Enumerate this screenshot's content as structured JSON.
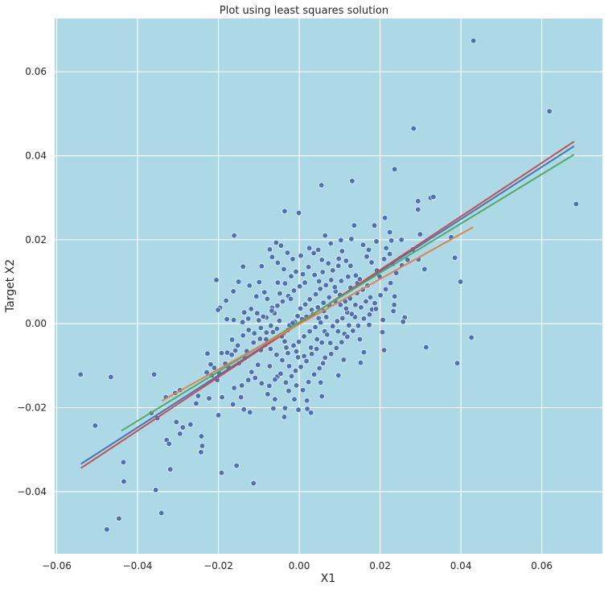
{
  "chart_data": {
    "type": "scatter",
    "title": "Plot using least squares solution",
    "xlabel": "X1",
    "ylabel": "Target X2",
    "xlim": [
      -0.0605,
      0.075
    ],
    "ylim": [
      -0.0548,
      0.0727
    ],
    "xticks": [
      -0.06,
      -0.04,
      -0.02,
      0.0,
      0.02,
      0.04,
      0.06
    ],
    "xtick_labels": [
      "−0.06",
      "−0.04",
      "−0.02",
      "0.00",
      "0.02",
      "0.04",
      "0.06"
    ],
    "yticks": [
      -0.04,
      -0.02,
      0.0,
      0.02,
      0.04,
      0.06
    ],
    "ytick_labels": [
      "−0.04",
      "−0.02",
      "0.00",
      "0.02",
      "0.04",
      "0.06"
    ],
    "grid": true,
    "colors": {
      "plot_background": "#add8e6",
      "grid": "#ffffff",
      "points": "#4c72b0",
      "point_edge": "#ffffff"
    },
    "lines": [
      {
        "color": "#4c72b0",
        "x": [
          -0.054,
          0.068
        ],
        "y": [
          -0.0334,
          0.0423
        ]
      },
      {
        "color": "#c44e52",
        "x": [
          -0.054,
          0.068
        ],
        "y": [
          -0.0344,
          0.0434
        ]
      },
      {
        "color": "#55a868",
        "x": [
          -0.044,
          0.068
        ],
        "y": [
          -0.0255,
          0.0403
        ]
      },
      {
        "color": "#dd8452",
        "x": [
          -0.034,
          0.043
        ],
        "y": [
          -0.0184,
          0.023
        ]
      }
    ],
    "points": [
      [
        0.0431,
        0.0674
      ],
      [
        0.0619,
        0.0506
      ],
      [
        0.0685,
        0.0285
      ],
      [
        0.0283,
        0.0465
      ],
      [
        0.0236,
        0.0368
      ],
      [
        0.0131,
        0.034
      ],
      [
        0.0055,
        0.033
      ],
      [
        0.0325,
        0.03
      ],
      [
        0.0332,
        0.0302
      ],
      [
        0.0294,
        0.0292
      ],
      [
        0.0294,
        0.0272
      ],
      [
        -0.0036,
        0.0268
      ],
      [
        -0.0001,
        0.0264
      ],
      [
        0.0212,
        0.0252
      ],
      [
        0.0186,
        0.0234
      ],
      [
        0.0136,
        0.0234
      ],
      [
        0.0224,
        0.0218
      ],
      [
        0.0299,
        0.0213
      ],
      [
        0.0064,
        0.021
      ],
      [
        -0.0161,
        0.021
      ],
      [
        0.0253,
        0.02
      ],
      [
        0.0228,
        0.0198
      ],
      [
        0.0376,
        0.0206
      ],
      [
        0.0385,
        0.0157
      ],
      [
        0.031,
        0.013
      ],
      [
        0.0399,
        0.01
      ],
      [
        0.0295,
        0.0153
      ],
      [
        0.0236,
        0.0065
      ],
      [
        0.0235,
        0.0045
      ],
      [
        0.0261,
        0.0015
      ],
      [
        0.0257,
        0.0005
      ],
      [
        0.0233,
        0.003
      ],
      [
        0.0207,
        0.0009
      ],
      [
        0.0206,
        -0.002
      ],
      [
        0.021,
        -0.0063
      ],
      [
        0.0314,
        -0.0056
      ],
      [
        0.0426,
        -0.0033
      ],
      [
        0.0391,
        -0.0094
      ],
      [
        0.015,
        -0.0037
      ],
      [
        0.016,
        -0.0068
      ],
      [
        0.0152,
        -0.0093
      ],
      [
        0.011,
        -0.0086
      ],
      [
        0.0097,
        -0.0123
      ],
      [
        0.0059,
        -0.0094
      ],
      [
        0.0053,
        -0.014
      ],
      [
        0.0056,
        -0.0173
      ],
      [
        0.0019,
        -0.0183
      ],
      [
        0.002,
        -0.0203
      ],
      [
        0.0029,
        -0.0212
      ],
      [
        -0.0002,
        -0.0205
      ],
      [
        -0.0012,
        -0.018
      ],
      [
        -0.0026,
        -0.016
      ],
      [
        -0.0035,
        -0.0201
      ],
      [
        -0.0037,
        -0.0222
      ],
      [
        -0.0064,
        -0.0202
      ],
      [
        -0.006,
        -0.018
      ],
      [
        -0.0078,
        -0.0168
      ],
      [
        -0.0054,
        -0.0126
      ],
      [
        -0.0073,
        -0.0101
      ],
      [
        -0.0102,
        -0.0098
      ],
      [
        -0.0118,
        -0.0115
      ],
      [
        -0.0126,
        -0.0134
      ],
      [
        -0.0142,
        -0.0147
      ],
      [
        -0.0161,
        -0.0153
      ],
      [
        -0.0144,
        -0.0175
      ],
      [
        -0.0164,
        -0.0192
      ],
      [
        -0.0137,
        -0.0204
      ],
      [
        -0.0122,
        -0.0211
      ],
      [
        -0.0191,
        -0.0175
      ],
      [
        -0.02,
        -0.0218
      ],
      [
        -0.0223,
        -0.0178
      ],
      [
        -0.025,
        -0.0172
      ],
      [
        -0.0255,
        -0.019
      ],
      [
        -0.0269,
        -0.024
      ],
      [
        -0.0288,
        -0.0247
      ],
      [
        -0.0304,
        -0.0234
      ],
      [
        -0.0328,
        -0.0277
      ],
      [
        -0.0322,
        -0.0286
      ],
      [
        -0.0295,
        -0.0262
      ],
      [
        -0.0242,
        -0.0268
      ],
      [
        -0.024,
        -0.0291
      ],
      [
        -0.0243,
        -0.0306
      ],
      [
        -0.0319,
        -0.0347
      ],
      [
        -0.0192,
        -0.0355
      ],
      [
        -0.0155,
        -0.0338
      ],
      [
        -0.0113,
        -0.038
      ],
      [
        -0.0355,
        -0.0396
      ],
      [
        -0.0341,
        -0.0451
      ],
      [
        -0.0434,
        -0.0376
      ],
      [
        -0.0446,
        -0.0464
      ],
      [
        -0.0476,
        -0.049
      ],
      [
        -0.0435,
        -0.033
      ],
      [
        -0.0505,
        -0.0243
      ],
      [
        -0.0541,
        -0.0121
      ],
      [
        -0.0466,
        -0.0127
      ],
      [
        -0.0359,
        -0.0121
      ],
      [
        -0.0366,
        -0.0213
      ],
      [
        -0.0351,
        -0.0225
      ],
      [
        -0.033,
        -0.0175
      ],
      [
        -0.0307,
        -0.0165
      ],
      [
        -0.0295,
        -0.0158
      ],
      [
        -0.0229,
        -0.0116
      ],
      [
        -0.0227,
        -0.0071
      ],
      [
        -0.0219,
        -0.0097
      ],
      [
        -0.0216,
        -0.0123
      ],
      [
        -0.0203,
        -0.0134
      ],
      [
        -0.0192,
        -0.007
      ],
      [
        -0.0178,
        -0.0069
      ],
      [
        -0.0166,
        -0.0038
      ],
      [
        -0.0158,
        -0.0064
      ],
      [
        -0.013,
        -0.0065
      ],
      [
        -0.0113,
        -0.0045
      ],
      [
        -0.0095,
        -0.0063
      ],
      [
        -0.0082,
        -0.0037
      ],
      [
        -0.0065,
        -0.002
      ],
      [
        -0.004,
        -0.0026
      ],
      [
        -0.0036,
        -0.0042
      ],
      [
        -0.0032,
        -0.0057
      ],
      [
        -0.0007,
        -0.0066
      ],
      [
        -0.0003,
        -0.008
      ],
      [
        0.0012,
        -0.0077
      ],
      [
        0.0029,
        -0.0057
      ],
      [
        0.0044,
        -0.0037
      ],
      [
        0.0063,
        -0.0018
      ],
      [
        0.0077,
        -0.0046
      ],
      [
        0.0096,
        -0.0018
      ],
      [
        0.0112,
        -0.0024
      ],
      [
        0.0123,
        -0.0004
      ],
      [
        0.0138,
        0.0016
      ],
      [
        0.0173,
        -0.0003
      ],
      [
        0.018,
        0.0034
      ],
      [
        0.019,
        0.0035
      ],
      [
        0.0169,
        0.0091
      ],
      [
        0.0144,
        0.0097
      ],
      [
        0.0127,
        0.0086
      ],
      [
        0.0104,
        0.0102
      ],
      [
        0.009,
        0.0077
      ],
      [
        0.0074,
        0.0063
      ],
      [
        0.006,
        0.005
      ],
      [
        0.0046,
        0.0039
      ],
      [
        0.0031,
        0.0033
      ],
      [
        0.0018,
        0.0017
      ],
      [
        0.0007,
        0.0011
      ],
      [
        -0.0011,
        0.0005
      ],
      [
        -0.0024,
        -0.0004
      ],
      [
        -0.0049,
        0.0007
      ],
      [
        -0.0061,
        0.0025
      ],
      [
        -0.0081,
        0.0015
      ],
      [
        -0.01,
        0.0008
      ],
      [
        -0.0126,
        0.0012
      ],
      [
        -0.014,
        0.0004
      ],
      [
        -0.0162,
        0.0009
      ],
      [
        -0.0179,
        0.0011
      ],
      [
        -0.0196,
        0.0038
      ],
      [
        -0.0201,
        0.0033
      ],
      [
        -0.0205,
        0.0104
      ],
      [
        -0.0136,
        0.0027
      ],
      [
        -0.0119,
        0.0035
      ],
      [
        -0.0106,
        0.0065
      ],
      [
        -0.0086,
        0.0075
      ],
      [
        -0.0079,
        0.0059
      ],
      [
        -0.0067,
        0.0038
      ],
      [
        -0.0048,
        0.0072
      ],
      [
        -0.0035,
        0.0096
      ],
      [
        -0.002,
        0.0113
      ],
      [
        -0.0008,
        0.0124
      ],
      [
        0.0009,
        0.0118
      ],
      [
        0.0023,
        0.0135
      ],
      [
        0.0038,
        0.0116
      ],
      [
        0.0049,
        0.0101
      ],
      [
        0.0058,
        0.0123
      ],
      [
        0.0072,
        0.0144
      ],
      [
        0.0083,
        0.0127
      ],
      [
        0.0098,
        0.0155
      ],
      [
        0.0106,
        0.0173
      ],
      [
        0.0116,
        0.015
      ],
      [
        0.0127,
        0.0138
      ],
      [
        0.014,
        0.0115
      ],
      [
        0.015,
        0.0106
      ],
      [
        0.0158,
        0.0188
      ],
      [
        0.0167,
        0.016
      ],
      [
        0.0179,
        0.0146
      ],
      [
        0.0192,
        0.0127
      ],
      [
        0.0199,
        0.0112
      ],
      [
        0.021,
        0.0154
      ],
      [
        0.0215,
        0.018
      ],
      [
        0.0224,
        0.0166
      ],
      [
        0.0232,
        0.0142
      ],
      [
        0.0191,
        0.0196
      ],
      [
        0.0172,
        0.0176
      ],
      [
        0.0129,
        0.0202
      ],
      [
        0.0103,
        0.0199
      ],
      [
        0.0078,
        0.0191
      ],
      [
        0.0047,
        0.0176
      ],
      [
        0.0036,
        0.0168
      ],
      [
        0.0025,
        0.018
      ],
      [
        0.0004,
        0.0162
      ],
      [
        -0.0016,
        0.0154
      ],
      [
        -0.0029,
        0.0169
      ],
      [
        -0.0045,
        0.0186
      ],
      [
        -0.0057,
        0.0193
      ],
      [
        -0.0073,
        0.0177
      ],
      [
        -0.0067,
        0.0159
      ],
      [
        -0.0053,
        0.0145
      ],
      [
        -0.0038,
        0.013
      ],
      [
        -0.0093,
        0.0137
      ],
      [
        -0.0099,
        0.0099
      ],
      [
        -0.0123,
        0.0091
      ],
      [
        -0.0139,
        0.0136
      ],
      [
        -0.015,
        0.01
      ],
      [
        -0.0163,
        0.0077
      ],
      [
        -0.0181,
        0.0055
      ],
      [
        -0.0104,
        0.0025
      ],
      [
        -0.0089,
        0.0017
      ],
      [
        -0.007,
        -0.0005
      ],
      [
        -0.0055,
        -0.0012
      ],
      [
        -0.0043,
        -0.003
      ],
      [
        -0.0028,
        -0.0015
      ],
      [
        -0.0016,
        0.0002
      ],
      [
        -0.0004,
        0.0018
      ],
      [
        0.0003,
        0.0036
      ],
      [
        0.0015,
        0.0046
      ],
      [
        0.0026,
        0.0058
      ],
      [
        0.0041,
        0.007
      ],
      [
        0.0052,
        0.0083
      ],
      [
        0.0066,
        0.0092
      ],
      [
        0.0079,
        0.0104
      ],
      [
        0.0088,
        0.0087
      ],
      [
        0.0101,
        0.0069
      ],
      [
        0.0114,
        0.0053
      ],
      [
        0.0126,
        0.006
      ],
      [
        0.0139,
        0.0045
      ],
      [
        0.0153,
        0.0039
      ],
      [
        0.0165,
        0.0053
      ],
      [
        0.0176,
        0.0063
      ],
      [
        0.0119,
        0.0027
      ],
      [
        0.0107,
        0.0013
      ],
      [
        0.0094,
        0.0006
      ],
      [
        0.0083,
        -0.0006
      ],
      [
        0.0069,
        -0.0026
      ],
      [
        0.0056,
        -0.0045
      ],
      [
        0.0043,
        -0.006
      ],
      [
        0.0031,
        -0.0072
      ],
      [
        0.0018,
        -0.0089
      ],
      [
        0.0004,
        -0.0103
      ],
      [
        -0.0009,
        -0.0112
      ],
      [
        -0.0025,
        -0.0101
      ],
      [
        -0.0042,
        -0.0087
      ],
      [
        -0.0056,
        -0.0074
      ],
      [
        -0.0071,
        -0.006
      ],
      [
        -0.0084,
        -0.0051
      ],
      [
        -0.0097,
        -0.0036
      ],
      [
        -0.0111,
        -0.0023
      ],
      [
        -0.0125,
        -0.0015
      ],
      [
        -0.0139,
        -0.0028
      ],
      [
        -0.0152,
        -0.0052
      ],
      [
        -0.0167,
        -0.0074
      ],
      [
        -0.0183,
        -0.0095
      ],
      [
        -0.0198,
        -0.0118
      ],
      [
        -0.021,
        -0.0105
      ],
      [
        -0.0175,
        -0.0104
      ],
      [
        -0.0149,
        -0.0094
      ],
      [
        -0.0134,
        -0.0082
      ],
      [
        -0.0109,
        -0.0129
      ],
      [
        -0.0093,
        -0.0142
      ],
      [
        -0.0074,
        -0.0148
      ],
      [
        -0.006,
        -0.0133
      ],
      [
        -0.0046,
        -0.0119
      ],
      [
        -0.0033,
        -0.014
      ],
      [
        -0.0019,
        -0.0125
      ],
      [
        -0.0007,
        -0.0147
      ],
      [
        0.0009,
        -0.0158
      ],
      [
        0.0023,
        -0.0139
      ],
      [
        0.0037,
        -0.0121
      ],
      [
        0.005,
        -0.0106
      ],
      [
        0.0064,
        -0.0081
      ],
      [
        0.0079,
        -0.0072
      ],
      [
        0.0092,
        -0.0058
      ],
      [
        0.0105,
        -0.0044
      ],
      [
        0.0119,
        -0.0031
      ],
      [
        0.0133,
        -0.0017
      ],
      [
        0.0146,
        -0.0005
      ],
      [
        0.016,
        0.0012
      ],
      [
        0.0174,
        0.0022
      ],
      [
        0.0187,
        0.0049
      ],
      [
        0.0201,
        0.0068
      ],
      [
        0.0214,
        0.0082
      ],
      [
        0.0226,
        0.0097
      ],
      [
        0.024,
        0.0121
      ],
      [
        0.0254,
        0.0139
      ],
      [
        0.0268,
        0.0152
      ],
      [
        0.0281,
        0.0177
      ],
      [
        0.0014,
        0.0098
      ],
      [
        0.0001,
        0.0089
      ],
      [
        -0.0013,
        0.0079
      ],
      [
        -0.0027,
        0.0066
      ],
      [
        -0.0041,
        0.0053
      ],
      [
        -0.0054,
        0.0043
      ],
      [
        -0.0068,
        0.0031
      ],
      [
        -0.0081,
        -0.0021
      ],
      [
        -0.0095,
        -0.001
      ],
      [
        0.0034,
        0.0022
      ],
      [
        0.0048,
        0.0013
      ],
      [
        0.0061,
        0.003
      ],
      [
        0.0075,
        0.0043
      ],
      [
        0.0089,
        0.0054
      ],
      [
        0.0102,
        0.0045
      ],
      [
        0.0116,
        0.0036
      ],
      [
        0.013,
        0.0023
      ],
      [
        0.0143,
        0.0073
      ],
      [
        0.0157,
        0.0081
      ],
      [
        0.0012,
        -0.003
      ],
      [
        -0.0001,
        -0.0043
      ],
      [
        -0.0014,
        -0.0052
      ],
      [
        -0.0028,
        -0.007
      ],
      [
        0.0026,
        -0.0018
      ],
      [
        0.004,
        -0.0008
      ],
      [
        0.0053,
        0.0003
      ],
      [
        0.0067,
        0.0016
      ],
      [
        -0.0053,
        0.0098
      ],
      [
        -0.0021,
        0.0059
      ],
      [
        0.0097,
        0.0138
      ],
      [
        0.0121,
        0.0112
      ],
      [
        0.0056,
        0.0152
      ]
    ]
  }
}
